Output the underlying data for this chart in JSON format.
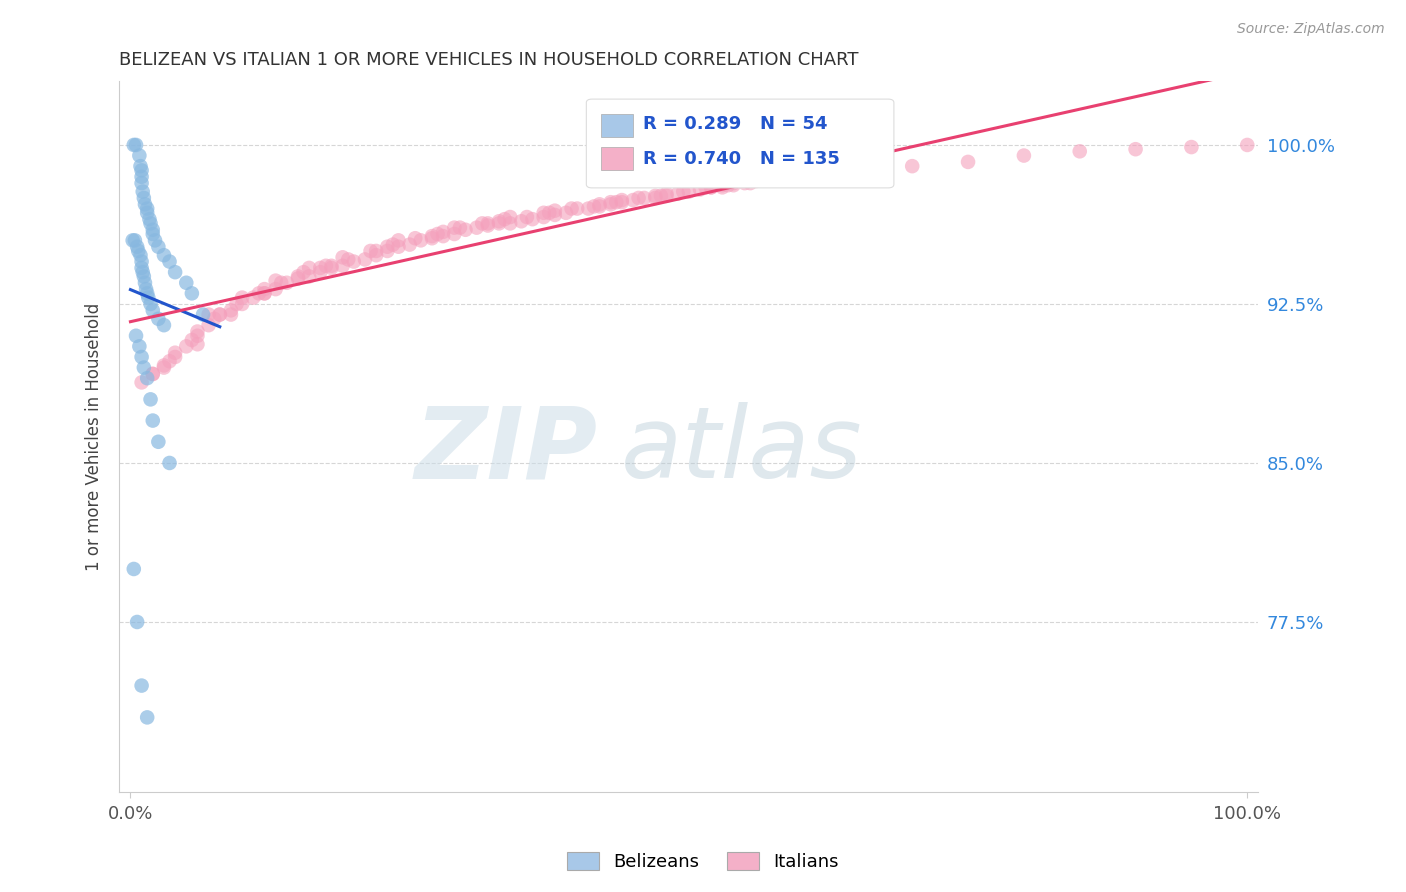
{
  "title": "BELIZEAN VS ITALIAN 1 OR MORE VEHICLES IN HOUSEHOLD CORRELATION CHART",
  "source": "Source: ZipAtlas.com",
  "ylabel": "1 or more Vehicles in Household",
  "ytick_labels": [
    "77.5%",
    "85.0%",
    "92.5%",
    "100.0%"
  ],
  "ytick_values": [
    0.775,
    0.85,
    0.925,
    1.0
  ],
  "legend_entries": [
    {
      "label": "Belizeans",
      "color": "#a8c8e8"
    },
    {
      "label": "Italians",
      "color": "#f4b0c8"
    }
  ],
  "r_belizean": 0.289,
  "n_belizean": 54,
  "r_italian": 0.74,
  "n_italian": 135,
  "belizean_color": "#88b8e0",
  "italian_color": "#f4a0bc",
  "belizean_line_color": "#2255cc",
  "italian_line_color": "#e84070",
  "background_color": "#ffffff",
  "watermark_zip_color": "#c8daea",
  "watermark_atlas_color": "#b0c8d8",
  "belizean_x": [
    0.3,
    0.5,
    0.8,
    0.9,
    1.0,
    1.0,
    1.0,
    1.1,
    1.2,
    1.3,
    1.5,
    1.5,
    1.7,
    1.8,
    2.0,
    2.0,
    2.2,
    2.5,
    3.0,
    3.5,
    4.0,
    5.0,
    5.5,
    6.5,
    0.2,
    0.4,
    0.6,
    0.7,
    0.9,
    1.0,
    1.0,
    1.1,
    1.2,
    1.3,
    1.4,
    1.5,
    1.6,
    1.8,
    2.0,
    2.5,
    3.0,
    0.5,
    0.8,
    1.0,
    1.2,
    1.5,
    1.8,
    2.0,
    2.5,
    3.5,
    0.3,
    0.6,
    1.0,
    1.5
  ],
  "belizean_y": [
    1.0,
    1.0,
    0.995,
    0.99,
    0.988,
    0.985,
    0.982,
    0.978,
    0.975,
    0.972,
    0.97,
    0.968,
    0.965,
    0.963,
    0.96,
    0.958,
    0.955,
    0.952,
    0.948,
    0.945,
    0.94,
    0.935,
    0.93,
    0.92,
    0.955,
    0.955,
    0.952,
    0.95,
    0.948,
    0.945,
    0.942,
    0.94,
    0.938,
    0.935,
    0.932,
    0.93,
    0.928,
    0.925,
    0.922,
    0.918,
    0.915,
    0.91,
    0.905,
    0.9,
    0.895,
    0.89,
    0.88,
    0.87,
    0.86,
    0.85,
    0.8,
    0.775,
    0.745,
    0.73
  ],
  "italian_x": [
    2.0,
    3.0,
    4.0,
    5.0,
    6.0,
    7.0,
    8.0,
    9.0,
    10.0,
    11.0,
    12.0,
    13.0,
    14.0,
    15.0,
    16.0,
    17.0,
    18.0,
    19.0,
    20.0,
    21.0,
    22.0,
    23.0,
    24.0,
    25.0,
    26.0,
    27.0,
    28.0,
    29.0,
    30.0,
    31.0,
    32.0,
    33.0,
    34.0,
    35.0,
    36.0,
    37.0,
    38.0,
    39.0,
    40.0,
    41.0,
    42.0,
    43.0,
    44.0,
    45.0,
    46.0,
    47.0,
    48.0,
    49.0,
    50.0,
    51.0,
    52.0,
    53.0,
    54.0,
    55.0,
    56.0,
    57.0,
    58.0,
    59.0,
    60.0,
    65.0,
    70.0,
    75.0,
    80.0,
    85.0,
    90.0,
    95.0,
    100.0,
    3.5,
    5.5,
    7.5,
    9.5,
    11.5,
    13.5,
    15.5,
    17.5,
    19.5,
    21.5,
    23.5,
    25.5,
    27.5,
    29.5,
    31.5,
    33.5,
    35.5,
    37.5,
    39.5,
    41.5,
    43.5,
    45.5,
    47.5,
    49.5,
    51.5,
    53.5,
    55.5,
    57.5,
    7.0,
    12.0,
    17.0,
    22.0,
    27.0,
    32.0,
    37.0,
    42.0,
    47.0,
    52.0,
    57.0,
    3.0,
    6.0,
    9.0,
    12.0,
    15.0,
    18.0,
    23.0,
    28.0,
    33.0,
    38.0,
    43.0,
    48.0,
    53.0,
    58.0,
    1.0,
    2.0,
    4.0,
    6.0,
    8.0,
    10.0,
    13.0,
    16.0,
    19.0,
    24.0,
    29.0,
    34.0,
    44.0,
    54.0,
    64.0
  ],
  "italian_y": [
    0.892,
    0.895,
    0.9,
    0.905,
    0.91,
    0.915,
    0.92,
    0.922,
    0.925,
    0.928,
    0.93,
    0.932,
    0.935,
    0.937,
    0.938,
    0.94,
    0.942,
    0.943,
    0.945,
    0.946,
    0.948,
    0.95,
    0.952,
    0.953,
    0.955,
    0.956,
    0.957,
    0.958,
    0.96,
    0.961,
    0.962,
    0.963,
    0.963,
    0.964,
    0.965,
    0.966,
    0.967,
    0.968,
    0.97,
    0.97,
    0.971,
    0.972,
    0.973,
    0.974,
    0.975,
    0.975,
    0.976,
    0.977,
    0.978,
    0.979,
    0.98,
    0.98,
    0.981,
    0.982,
    0.983,
    0.984,
    0.985,
    0.985,
    0.986,
    0.988,
    0.99,
    0.992,
    0.995,
    0.997,
    0.998,
    0.999,
    1.0,
    0.898,
    0.908,
    0.918,
    0.925,
    0.93,
    0.935,
    0.94,
    0.943,
    0.946,
    0.95,
    0.953,
    0.956,
    0.958,
    0.961,
    0.963,
    0.965,
    0.966,
    0.968,
    0.97,
    0.971,
    0.973,
    0.975,
    0.976,
    0.978,
    0.98,
    0.981,
    0.982,
    0.984,
    0.92,
    0.932,
    0.942,
    0.95,
    0.957,
    0.963,
    0.968,
    0.972,
    0.976,
    0.98,
    0.984,
    0.896,
    0.906,
    0.92,
    0.93,
    0.938,
    0.943,
    0.952,
    0.959,
    0.964,
    0.969,
    0.973,
    0.977,
    0.981,
    0.985,
    0.888,
    0.892,
    0.902,
    0.912,
    0.92,
    0.928,
    0.936,
    0.942,
    0.947,
    0.955,
    0.961,
    0.966,
    0.974,
    0.982,
    0.988
  ]
}
